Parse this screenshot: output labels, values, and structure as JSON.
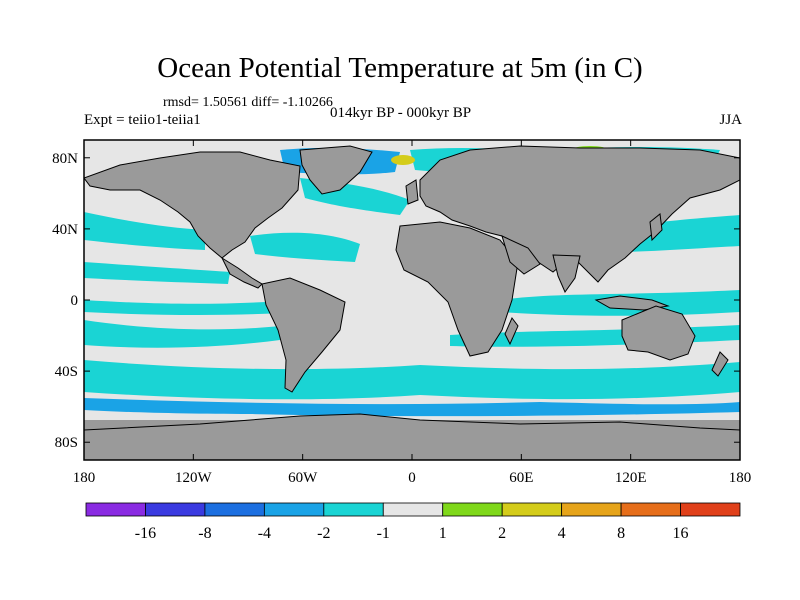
{
  "title": "Ocean Potential Temperature at 5m (in C)",
  "stats": "rmsd= 1.50561 diff= -1.10266",
  "experiment": "Expt = teiio1-teiia1",
  "period": "014kyr BP - 000kyr BP",
  "season": "JJA",
  "map": {
    "projection": "cylindrical-equidistant",
    "lon_range": [
      -180,
      180
    ],
    "lat_range": [
      -90,
      90
    ],
    "land_color": "#9a9a9a",
    "lat_ticks": [
      {
        "value": 80,
        "label": "80N"
      },
      {
        "value": 40,
        "label": "40N"
      },
      {
        "value": 0,
        "label": "0"
      },
      {
        "value": -40,
        "label": "40S"
      },
      {
        "value": -80,
        "label": "80S"
      }
    ],
    "lon_ticks": [
      {
        "value": -180,
        "label": "180"
      },
      {
        "value": -120,
        "label": "120W"
      },
      {
        "value": -60,
        "label": "60W"
      },
      {
        "value": 0,
        "label": "0"
      },
      {
        "value": 60,
        "label": "60E"
      },
      {
        "value": 120,
        "label": "120E"
      },
      {
        "value": 180,
        "label": "180"
      }
    ]
  },
  "colorbar": {
    "colors": [
      "#8a2be2",
      "#3a3ae0",
      "#1c6fe0",
      "#1aa3e6",
      "#1ad4d4",
      "#e6e6e6",
      "#7fd81a",
      "#d4cc1a",
      "#e6a41a",
      "#e66e1a",
      "#e0401a"
    ],
    "labels": [
      "-16",
      "-8",
      "-4",
      "-2",
      "-1",
      "1",
      "2",
      "4",
      "8",
      "16"
    ]
  }
}
